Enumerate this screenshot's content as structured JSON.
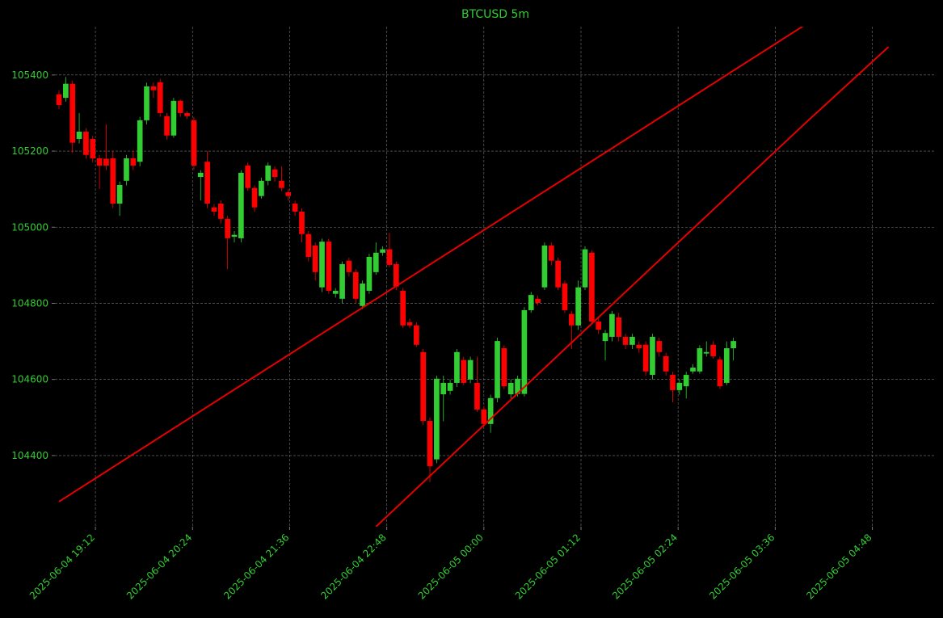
{
  "chart_data": {
    "type": "candlestick",
    "title": "BTCUSD 5m",
    "up_color": "#32cd32",
    "down_color": "#ff0000",
    "line_color": "#e60000",
    "grid": true,
    "x": [
      "2025-06-04 18:45",
      "2025-06-04 18:50",
      "2025-06-04 18:55",
      "2025-06-04 19:00",
      "2025-06-04 19:05",
      "2025-06-04 19:10",
      "2025-06-04 19:15",
      "2025-06-04 19:20",
      "2025-06-04 19:25",
      "2025-06-04 19:30",
      "2025-06-04 19:35",
      "2025-06-04 19:40",
      "2025-06-04 19:45",
      "2025-06-04 19:50",
      "2025-06-04 19:55",
      "2025-06-04 20:00",
      "2025-06-04 20:05",
      "2025-06-04 20:10",
      "2025-06-04 20:15",
      "2025-06-04 20:20",
      "2025-06-04 20:25",
      "2025-06-04 20:30",
      "2025-06-04 20:35",
      "2025-06-04 20:40",
      "2025-06-04 20:45",
      "2025-06-04 20:50",
      "2025-06-04 20:55",
      "2025-06-04 21:00",
      "2025-06-04 21:05",
      "2025-06-04 21:10",
      "2025-06-04 21:15",
      "2025-06-04 21:20",
      "2025-06-04 21:25",
      "2025-06-04 21:30",
      "2025-06-04 21:35",
      "2025-06-04 21:40",
      "2025-06-04 21:45",
      "2025-06-04 21:50",
      "2025-06-04 21:55",
      "2025-06-04 22:00",
      "2025-06-04 22:05",
      "2025-06-04 22:10",
      "2025-06-04 22:15",
      "2025-06-04 22:20",
      "2025-06-04 22:25",
      "2025-06-04 22:30",
      "2025-06-04 22:35",
      "2025-06-04 22:40",
      "2025-06-04 22:45",
      "2025-06-04 22:50",
      "2025-06-04 22:55",
      "2025-06-04 23:00",
      "2025-06-04 23:05",
      "2025-06-04 23:10",
      "2025-06-04 23:15",
      "2025-06-04 23:20",
      "2025-06-04 23:25",
      "2025-06-04 23:30",
      "2025-06-04 23:35",
      "2025-06-04 23:40",
      "2025-06-04 23:45",
      "2025-06-04 23:50",
      "2025-06-04 23:55",
      "2025-06-05 00:00",
      "2025-06-05 00:05",
      "2025-06-05 00:10",
      "2025-06-05 00:15",
      "2025-06-05 00:20",
      "2025-06-05 00:25",
      "2025-06-05 00:30",
      "2025-06-05 00:35",
      "2025-06-05 00:40",
      "2025-06-05 00:45",
      "2025-06-05 00:50",
      "2025-06-05 00:55",
      "2025-06-05 01:00",
      "2025-06-05 01:05",
      "2025-06-05 01:10",
      "2025-06-05 01:15",
      "2025-06-05 01:20",
      "2025-06-05 01:25",
      "2025-06-05 01:30",
      "2025-06-05 01:35",
      "2025-06-05 01:40",
      "2025-06-05 01:45",
      "2025-06-05 01:50",
      "2025-06-05 01:55",
      "2025-06-05 02:00",
      "2025-06-05 02:05",
      "2025-06-05 02:10",
      "2025-06-05 02:15",
      "2025-06-05 02:20",
      "2025-06-05 02:25",
      "2025-06-05 02:30",
      "2025-06-05 02:35",
      "2025-06-05 02:40",
      "2025-06-05 02:45",
      "2025-06-05 02:50",
      "2025-06-05 02:55",
      "2025-06-05 03:00",
      "2025-06-05 03:05"
    ],
    "open": [
      105349,
      105340,
      105377,
      105232,
      105251,
      105232,
      105181,
      105180,
      105181,
      105062,
      105122,
      105181,
      105172,
      105281,
      105370,
      105381,
      105292,
      105241,
      105332,
      105300,
      105281,
      105132,
      105172,
      105052,
      105062,
      105022,
      104975,
      104971,
      105162,
      105103,
      105082,
      105122,
      105152,
      105122,
      105092,
      105062,
      105041,
      104982,
      104952,
      104842,
      104962,
      104825,
      104812,
      104912,
      104882,
      104793,
      104833,
      104882,
      104933,
      104942,
      104903,
      104833,
      104750,
      104742,
      104672,
      104491,
      104390,
      104561,
      104570,
      104591,
      104651,
      104600,
      104591,
      104521,
      104483,
      104551,
      104682,
      104561,
      104562,
      104562,
      104782,
      104812,
      104842,
      104952,
      104912,
      104852,
      104772,
      104742,
      104842,
      104933,
      104752,
      104701,
      104712,
      104763,
      104712,
      104691,
      104691,
      104691,
      104612,
      104701,
      104661,
      104612,
      104572,
      104582,
      104621,
      104621,
      104668,
      104691,
      104652,
      104591,
      104682
    ],
    "high": [
      105360,
      105395,
      105385,
      105300,
      105260,
      105240,
      105190,
      105270,
      105200,
      105120,
      105190,
      105200,
      105290,
      105380,
      105380,
      105390,
      105300,
      105340,
      105335,
      105305,
      105290,
      105150,
      105200,
      105060,
      105070,
      105030,
      104990,
      105150,
      105170,
      105110,
      105130,
      105170,
      105160,
      105160,
      105100,
      105070,
      105050,
      104990,
      104960,
      104970,
      104970,
      104840,
      104910,
      104920,
      104890,
      104860,
      104930,
      104960,
      104950,
      104985,
      104910,
      104840,
      104760,
      104750,
      104680,
      104500,
      104610,
      104610,
      104600,
      104680,
      104660,
      104660,
      104660,
      104530,
      104560,
      104710,
      104690,
      104600,
      104610,
      104790,
      104830,
      104820,
      104960,
      104960,
      104920,
      104860,
      104780,
      104860,
      104950,
      104940,
      104760,
      104730,
      104780,
      104775,
      104720,
      104720,
      104700,
      104700,
      104720,
      104710,
      104670,
      104620,
      104600,
      104620,
      104640,
      104690,
      104700,
      104700,
      104660,
      104700,
      104710
    ],
    "low": [
      105310,
      105330,
      105195,
      105220,
      105180,
      105170,
      105100,
      105150,
      105050,
      105030,
      105110,
      105150,
      105160,
      105270,
      105340,
      105290,
      105230,
      105235,
      105290,
      105285,
      105150,
      105070,
      105050,
      105030,
      105010,
      104890,
      104960,
      104960,
      105095,
      105040,
      105075,
      105110,
      105120,
      105095,
      105070,
      105030,
      104960,
      104910,
      104860,
      104830,
      104825,
      104815,
      104800,
      104870,
      104800,
      104785,
      104825,
      104875,
      104925,
      104895,
      104835,
      104735,
      104735,
      104685,
      104480,
      104330,
      104380,
      104490,
      104560,
      104580,
      104585,
      104590,
      104515,
      104475,
      104460,
      104540,
      104575,
      104550,
      104555,
      104555,
      104775,
      104795,
      104835,
      104900,
      104835,
      104775,
      104680,
      104730,
      104835,
      104745,
      104720,
      104650,
      104700,
      104700,
      104680,
      104680,
      104670,
      104610,
      104600,
      104660,
      104610,
      104540,
      104560,
      104550,
      104615,
      104615,
      104660,
      104655,
      104575,
      104585,
      104650
    ],
    "close": [
      105321,
      105377,
      105222,
      105251,
      105190,
      105181,
      105162,
      105162,
      105062,
      105111,
      105181,
      105162,
      105281,
      105370,
      105360,
      105300,
      105241,
      105332,
      105300,
      105292,
      105162,
      105143,
      105062,
      105041,
      105022,
      104971,
      104980,
      105143,
      105103,
      105052,
      105122,
      105162,
      105132,
      105103,
      105082,
      105041,
      104982,
      104922,
      104882,
      104962,
      104833,
      104833,
      104903,
      104882,
      104812,
      104852,
      104922,
      104933,
      104942,
      104901,
      104844,
      104742,
      104742,
      104691,
      104491,
      104372,
      104602,
      104591,
      104591,
      104672,
      104591,
      104651,
      104521,
      104483,
      104551,
      104701,
      104582,
      104591,
      104602,
      104782,
      104822,
      104801,
      104952,
      104912,
      104842,
      104782,
      104742,
      104842,
      104942,
      104752,
      104731,
      104722,
      104772,
      104712,
      104691,
      104712,
      104682,
      104621,
      104712,
      104672,
      104621,
      104572,
      104591,
      104612,
      104631,
      104682,
      104672,
      104661,
      104582,
      104682,
      104701
    ],
    "lines": [
      {
        "x": [
          "2025-06-04 18:45",
          "2025-06-05 04:00"
        ],
        "values": [
          104279,
          105536
        ]
      },
      {
        "x": [
          "2025-06-04 22:40",
          "2025-06-05 01:00",
          "2025-06-05 04:00",
          "2025-06-05 05:00"
        ],
        "values": [
          104213,
          104680,
          105279,
          105474
        ]
      }
    ],
    "xlim": [
      "2025-06-04 18:42",
      "2025-06-05 05:35"
    ],
    "xticks": [
      "2025-06-04 19:12",
      "2025-06-04 20:24",
      "2025-06-04 21:36",
      "2025-06-04 22:48",
      "2025-06-05 00:00",
      "2025-06-05 01:12",
      "2025-06-05 02:24",
      "2025-06-05 03:36",
      "2025-06-05 04:48"
    ],
    "ylim": [
      104213,
      105527
    ],
    "yticks": [
      104400,
      104600,
      104800,
      105000,
      105200,
      105400
    ]
  }
}
